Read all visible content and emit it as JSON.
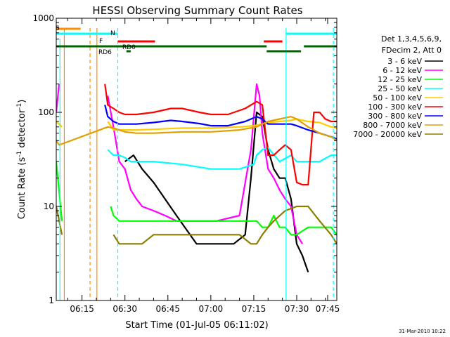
{
  "chart_data": {
    "type": "line",
    "title": "HESSI Observing Summary Count Rates",
    "xlabel": "Start Time (01-Jul-05 06:11:02)",
    "ylabel_main": "Count Rate (s",
    "ylabel_sup1": "-1",
    "ylabel_mid": " detector",
    "ylabel_sup2": "-1",
    "ylabel_end": ")",
    "y_scale": "log",
    "ylim": [
      1,
      1000
    ],
    "xlim_minutes": [
      6.0,
      104.0
    ],
    "y_ticks": [
      {
        "value": 1,
        "label": "1"
      },
      {
        "value": 10,
        "label": "10"
      },
      {
        "value": 100,
        "label": "100"
      },
      {
        "value": 1000,
        "label": "1000"
      }
    ],
    "x_ticks": [
      {
        "minute": 15,
        "label": "06:15"
      },
      {
        "minute": 30,
        "label": "06:30"
      },
      {
        "minute": 45,
        "label": "06:45"
      },
      {
        "minute": 60,
        "label": "07:00"
      },
      {
        "minute": 75,
        "label": "07:15"
      },
      {
        "minute": 90,
        "label": "07:30"
      },
      {
        "minute": 105,
        "label": "07:45"
      }
    ],
    "legend_header": [
      "Det 1,3,4,5,6,9,",
      "FDecim 2, Att 0"
    ],
    "legend_position": "right",
    "date_stamp": "31-Mar-2010 10:22",
    "series": [
      {
        "name": "3 - 6 keV",
        "color": "#000000",
        "x": [
          6,
          22,
          23,
          25,
          26,
          28,
          30,
          33,
          36,
          40,
          44,
          48,
          55,
          62,
          68,
          72,
          74,
          76,
          78,
          80,
          82,
          84,
          86,
          88,
          90,
          92,
          94,
          96,
          100,
          104
        ],
        "y": [
          null,
          null,
          null,
          null,
          null,
          null,
          30,
          35,
          25,
          18,
          12,
          8,
          4,
          4,
          4,
          5,
          20,
          100,
          90,
          40,
          25,
          20,
          20,
          12,
          4,
          3,
          2,
          null,
          null,
          null
        ]
      },
      {
        "name": "6 - 12 keV",
        "color": "#ff00ff",
        "x": [
          6,
          7,
          8,
          23,
          24,
          26,
          28,
          30,
          32,
          34,
          36,
          40,
          44,
          48,
          55,
          62,
          70,
          74,
          76,
          77,
          78,
          80,
          82,
          84,
          86,
          88,
          90,
          92
        ],
        "y": [
          100,
          200,
          null,
          null,
          150,
          70,
          30,
          25,
          15,
          12,
          10,
          9,
          8,
          7,
          7,
          7,
          8,
          40,
          200,
          150,
          60,
          25,
          20,
          15,
          12,
          10,
          5,
          4
        ]
      },
      {
        "name": "12 - 25 keV",
        "color": "#00ff00",
        "x": [
          6,
          8,
          10,
          24,
          25,
          26,
          28,
          30,
          32,
          36,
          40,
          50,
          60,
          70,
          76,
          78,
          80,
          82,
          84,
          86,
          88,
          90,
          94,
          98,
          102,
          104
        ],
        "y": [
          30,
          7,
          null,
          null,
          10,
          8,
          7,
          7,
          7,
          7,
          7,
          7,
          7,
          7,
          7,
          6,
          6,
          8,
          6,
          6,
          5,
          5,
          6,
          6,
          6,
          5
        ]
      },
      {
        "name": "25 - 50 keV",
        "color": "#00ffff",
        "x": [
          6,
          9,
          22,
          24,
          26,
          28,
          30,
          32,
          36,
          40,
          50,
          60,
          70,
          75,
          76,
          78,
          80,
          84,
          88,
          90,
          94,
          98,
          102,
          104
        ],
        "y": [
          null,
          null,
          null,
          40,
          35,
          35,
          33,
          30,
          30,
          30,
          28,
          25,
          25,
          28,
          35,
          40,
          42,
          30,
          35,
          30,
          30,
          30,
          35,
          35
        ]
      },
      {
        "name": "50 - 100 keV",
        "color": "#ffcc00",
        "x": [
          6,
          8,
          23,
          24,
          26,
          28,
          30,
          34,
          40,
          50,
          60,
          70,
          75,
          78,
          80,
          84,
          88,
          90,
          94,
          98,
          102,
          104
        ],
        "y": [
          80,
          70,
          null,
          80,
          65,
          65,
          65,
          65,
          66,
          68,
          68,
          70,
          72,
          75,
          78,
          80,
          82,
          85,
          80,
          78,
          70,
          68
        ]
      },
      {
        "name": "100 - 300 keV",
        "color": "#ff0000",
        "x": [
          23,
          24,
          26,
          28,
          30,
          34,
          40,
          46,
          50,
          56,
          60,
          66,
          72,
          76,
          78,
          80,
          82,
          84,
          86,
          88,
          90,
          92,
          94,
          96,
          98,
          100,
          102,
          104
        ],
        "y": [
          200,
          120,
          110,
          100,
          95,
          95,
          100,
          110,
          110,
          100,
          95,
          95,
          110,
          130,
          120,
          35,
          35,
          40,
          45,
          40,
          18,
          17,
          17,
          100,
          100,
          85,
          80,
          80
        ]
      },
      {
        "name": "300 - 800 keV",
        "color": "#0000ff",
        "x": [
          23,
          24,
          26,
          28,
          30,
          34,
          40,
          46,
          50,
          56,
          60,
          66,
          72,
          76,
          78,
          80,
          84,
          88,
          90,
          94,
          98,
          102,
          104
        ],
        "y": [
          120,
          90,
          80,
          75,
          75,
          75,
          78,
          82,
          80,
          76,
          72,
          72,
          80,
          90,
          85,
          75,
          75,
          75,
          72,
          65,
          60,
          55,
          52
        ]
      },
      {
        "name": "800 - 7000 keV",
        "color": "#e0a000",
        "x": [
          6,
          7,
          24,
          26,
          28,
          30,
          34,
          40,
          50,
          60,
          70,
          76,
          78,
          80,
          84,
          88,
          90,
          94,
          98,
          102,
          104
        ],
        "y": [
          50,
          45,
          70,
          68,
          65,
          62,
          60,
          60,
          62,
          62,
          65,
          70,
          75,
          80,
          85,
          90,
          85,
          70,
          60,
          55,
          50
        ]
      },
      {
        "name": "7000 - 20000 keV",
        "color": "#8b7d00",
        "x": [
          6,
          8,
          10,
          26,
          28,
          30,
          32,
          36,
          40,
          44,
          50,
          56,
          60,
          64,
          70,
          74,
          76,
          78,
          80,
          82,
          86,
          90,
          94,
          98,
          102,
          104
        ],
        "y": [
          10,
          5,
          null,
          5,
          4,
          4,
          4,
          4,
          5,
          5,
          5,
          5,
          5,
          5,
          5,
          4,
          4,
          5,
          6,
          7,
          9,
          10,
          10,
          7,
          5,
          4
        ]
      }
    ],
    "vertical_markers": [
      {
        "minute": 7.3,
        "color": "#00ffff",
        "style": "solid",
        "y_top": 55
      },
      {
        "minute": 8.8,
        "color": "#ff8c00",
        "style": "solid",
        "y_top": 40
      },
      {
        "minute": 17.8,
        "color": "#ff8c00",
        "style": "dashed",
        "y_top": 40
      },
      {
        "minute": 20.2,
        "color": "#ff8c00",
        "style": "solid",
        "y_top": 40
      },
      {
        "minute": 27.5,
        "color": "#00ffff",
        "style": "dashed",
        "y_top": 40
      },
      {
        "minute": 86.3,
        "color": "#00ffff",
        "style": "solid",
        "y_top": 40
      },
      {
        "minute": 102.8,
        "color": "#00ffff",
        "style": "dashed",
        "y_top": 40
      }
    ],
    "state_bars": [
      {
        "color": "#ff8c00",
        "x0": 6.0,
        "x1": 14.5,
        "y": 41,
        "label": "S"
      },
      {
        "color": "#00ffff",
        "x0": 6.0,
        "x1": 27.5,
        "y": 48,
        "label": ""
      },
      {
        "color": "#00ffff",
        "x0": 86.3,
        "x1": 104.0,
        "y": 48,
        "label": "N"
      },
      {
        "color": "#ff0000",
        "x0": 27.5,
        "x1": 40.5,
        "y": 59,
        "label": "F"
      },
      {
        "color": "#ff0000",
        "x0": 78.5,
        "x1": 85.0,
        "y": 59,
        "label": ""
      },
      {
        "color": "#006400",
        "x0": 6.0,
        "x1": 79.5,
        "y": 66,
        "label": ""
      },
      {
        "color": "#006400",
        "x0": 92.5,
        "x1": 104.0,
        "y": 66,
        "label": "RD0"
      },
      {
        "color": "#006400",
        "x0": 79.5,
        "x1": 91.5,
        "y": 73,
        "label": ""
      },
      {
        "color": "#006400",
        "x0": 30.5,
        "x1": 32.0,
        "y": 73,
        "label": "RD6"
      }
    ],
    "marker_labels": {
      "s_label": "S",
      "n_label": "N",
      "f_label": "F",
      "rd0_label": "RD0",
      "rd6_label": "RD6"
    }
  }
}
